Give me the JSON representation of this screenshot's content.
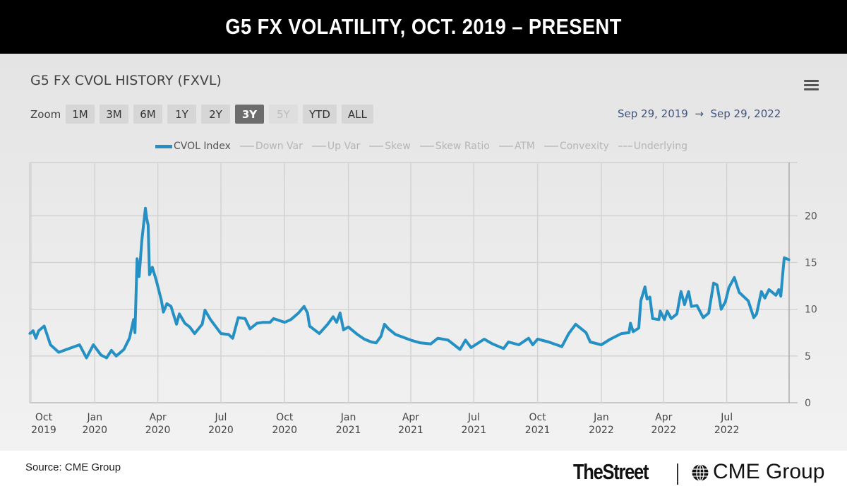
{
  "header": {
    "title": "G5 FX VOLATILITY, OCT. 2019 – PRESENT"
  },
  "chart_header": {
    "title": "G5 FX CVOL HISTORY (FXVL)",
    "menu_icon": "hamburger-menu-icon",
    "zoom_label": "Zoom",
    "zoom_buttons": [
      {
        "label": "1M",
        "state": "normal"
      },
      {
        "label": "3M",
        "state": "normal"
      },
      {
        "label": "6M",
        "state": "normal"
      },
      {
        "label": "1Y",
        "state": "normal"
      },
      {
        "label": "2Y",
        "state": "normal"
      },
      {
        "label": "3Y",
        "state": "selected"
      },
      {
        "label": "5Y",
        "state": "disabled"
      },
      {
        "label": "YTD",
        "state": "normal"
      },
      {
        "label": "ALL",
        "state": "normal"
      }
    ],
    "range_from": "Sep 29, 2019",
    "range_arrow": "→",
    "range_to": "Sep 29, 2022"
  },
  "chart_data": {
    "type": "line",
    "title": "G5 FX CVOL HISTORY (FXVL)",
    "xlabel": "",
    "ylabel": "",
    "xlim": [
      "2019-09-29",
      "2022-09-29"
    ],
    "ylim": [
      0,
      25.7
    ],
    "grid": true,
    "legend_position": "top-center",
    "legend": [
      {
        "name": "CVOL Index",
        "active": true,
        "style": "solid"
      },
      {
        "name": "Down Var",
        "active": false,
        "style": "solid"
      },
      {
        "name": "Up Var",
        "active": false,
        "style": "solid"
      },
      {
        "name": "Skew",
        "active": false,
        "style": "solid"
      },
      {
        "name": "Skew Ratio",
        "active": false,
        "style": "solid"
      },
      {
        "name": "ATM",
        "active": false,
        "style": "solid"
      },
      {
        "name": "Convexity",
        "active": false,
        "style": "solid"
      },
      {
        "name": "Underlying",
        "active": false,
        "style": "dashed"
      }
    ],
    "series_color": "#2590c4",
    "y_ticks": [
      "0",
      "5",
      "10",
      "15",
      "20"
    ],
    "y_tick_values": [
      0,
      5,
      10,
      15,
      20
    ],
    "x_ticks": [
      {
        "date": "2019-10-01",
        "l1": "Oct",
        "l2": "2019"
      },
      {
        "date": "2020-01-01",
        "l1": "Jan",
        "l2": "2020"
      },
      {
        "date": "2020-04-01",
        "l1": "Apr",
        "l2": "2020"
      },
      {
        "date": "2020-07-01",
        "l1": "Jul",
        "l2": "2020"
      },
      {
        "date": "2020-10-01",
        "l1": "Oct",
        "l2": "2020"
      },
      {
        "date": "2021-01-01",
        "l1": "Jan",
        "l2": "2021"
      },
      {
        "date": "2021-04-01",
        "l1": "Apr",
        "l2": "2021"
      },
      {
        "date": "2021-07-01",
        "l1": "Jul",
        "l2": "2021"
      },
      {
        "date": "2021-10-01",
        "l1": "Oct",
        "l2": "2021"
      },
      {
        "date": "2022-01-01",
        "l1": "Jan",
        "l2": "2022"
      },
      {
        "date": "2022-04-01",
        "l1": "Apr",
        "l2": "2022"
      },
      {
        "date": "2022-07-01",
        "l1": "Jul",
        "l2": "2022"
      }
    ],
    "series": [
      {
        "name": "CVOL Index",
        "points": [
          [
            "2019-09-29",
            7.4
          ],
          [
            "2019-10-01",
            7.5
          ],
          [
            "2019-10-04",
            7.7
          ],
          [
            "2019-10-08",
            6.9
          ],
          [
            "2019-10-12",
            7.7
          ],
          [
            "2019-10-20",
            8.2
          ],
          [
            "2019-10-29",
            6.2
          ],
          [
            "2019-11-10",
            5.4
          ],
          [
            "2019-11-25",
            5.8
          ],
          [
            "2019-12-10",
            6.2
          ],
          [
            "2019-12-20",
            4.8
          ],
          [
            "2019-12-30",
            6.2
          ],
          [
            "2020-01-10",
            5.1
          ],
          [
            "2020-01-18",
            4.8
          ],
          [
            "2020-01-25",
            5.6
          ],
          [
            "2020-02-01",
            5.0
          ],
          [
            "2020-02-12",
            5.7
          ],
          [
            "2020-02-20",
            6.9
          ],
          [
            "2020-02-26",
            8.9
          ],
          [
            "2020-02-28",
            7.5
          ],
          [
            "2020-03-02",
            15.4
          ],
          [
            "2020-03-05",
            13.5
          ],
          [
            "2020-03-09",
            17.4
          ],
          [
            "2020-03-14",
            20.8
          ],
          [
            "2020-03-16",
            19.7
          ],
          [
            "2020-03-18",
            19.0
          ],
          [
            "2020-03-20",
            13.7
          ],
          [
            "2020-03-24",
            14.5
          ],
          [
            "2020-03-30",
            13.0
          ],
          [
            "2020-04-06",
            11.0
          ],
          [
            "2020-04-09",
            9.7
          ],
          [
            "2020-04-14",
            10.6
          ],
          [
            "2020-04-20",
            10.3
          ],
          [
            "2020-04-28",
            8.4
          ],
          [
            "2020-05-02",
            9.5
          ],
          [
            "2020-05-10",
            8.5
          ],
          [
            "2020-05-17",
            8.1
          ],
          [
            "2020-05-24",
            7.4
          ],
          [
            "2020-06-04",
            8.4
          ],
          [
            "2020-06-08",
            9.9
          ],
          [
            "2020-06-16",
            8.9
          ],
          [
            "2020-07-01",
            7.4
          ],
          [
            "2020-07-12",
            7.3
          ],
          [
            "2020-07-18",
            6.9
          ],
          [
            "2020-07-26",
            9.1
          ],
          [
            "2020-08-05",
            9.0
          ],
          [
            "2020-08-12",
            7.9
          ],
          [
            "2020-08-22",
            8.5
          ],
          [
            "2020-08-31",
            8.6
          ],
          [
            "2020-09-10",
            8.6
          ],
          [
            "2020-09-15",
            9.0
          ],
          [
            "2020-10-01",
            8.6
          ],
          [
            "2020-10-10",
            8.9
          ],
          [
            "2020-10-21",
            9.6
          ],
          [
            "2020-10-29",
            10.3
          ],
          [
            "2020-11-03",
            9.6
          ],
          [
            "2020-11-06",
            8.2
          ],
          [
            "2020-11-20",
            7.4
          ],
          [
            "2020-12-02",
            8.4
          ],
          [
            "2020-12-10",
            9.2
          ],
          [
            "2020-12-15",
            8.6
          ],
          [
            "2020-12-20",
            9.6
          ],
          [
            "2020-12-25",
            7.8
          ],
          [
            "2021-01-01",
            8.1
          ],
          [
            "2021-01-14",
            7.3
          ],
          [
            "2021-01-24",
            6.8
          ],
          [
            "2021-02-03",
            6.5
          ],
          [
            "2021-02-10",
            6.4
          ],
          [
            "2021-02-17",
            7.1
          ],
          [
            "2021-02-22",
            8.4
          ],
          [
            "2021-02-28",
            7.9
          ],
          [
            "2021-03-10",
            7.3
          ],
          [
            "2021-04-01",
            6.7
          ],
          [
            "2021-04-15",
            6.4
          ],
          [
            "2021-04-30",
            6.3
          ],
          [
            "2021-05-10",
            6.9
          ],
          [
            "2021-05-25",
            6.7
          ],
          [
            "2021-06-11",
            5.7
          ],
          [
            "2021-06-19",
            6.7
          ],
          [
            "2021-06-27",
            5.9
          ],
          [
            "2021-07-16",
            6.8
          ],
          [
            "2021-07-28",
            6.3
          ],
          [
            "2021-08-13",
            5.8
          ],
          [
            "2021-08-20",
            6.5
          ],
          [
            "2021-09-04",
            6.2
          ],
          [
            "2021-09-18",
            6.9
          ],
          [
            "2021-09-24",
            6.2
          ],
          [
            "2021-10-01",
            6.8
          ],
          [
            "2021-10-17",
            6.5
          ],
          [
            "2021-11-05",
            6.0
          ],
          [
            "2021-11-15",
            7.4
          ],
          [
            "2021-11-25",
            8.4
          ],
          [
            "2021-12-10",
            7.5
          ],
          [
            "2021-12-16",
            6.5
          ],
          [
            "2022-01-01",
            6.2
          ],
          [
            "2022-01-14",
            6.8
          ],
          [
            "2022-01-30",
            7.4
          ],
          [
            "2022-02-10",
            7.5
          ],
          [
            "2022-02-12",
            8.5
          ],
          [
            "2022-02-16",
            7.6
          ],
          [
            "2022-02-24",
            8.0
          ],
          [
            "2022-02-27",
            10.9
          ],
          [
            "2022-03-05",
            12.4
          ],
          [
            "2022-03-08",
            11.1
          ],
          [
            "2022-03-12",
            11.3
          ],
          [
            "2022-03-16",
            9.0
          ],
          [
            "2022-03-25",
            8.9
          ],
          [
            "2022-03-27",
            9.8
          ],
          [
            "2022-04-02",
            8.9
          ],
          [
            "2022-04-06",
            9.8
          ],
          [
            "2022-04-12",
            9.0
          ],
          [
            "2022-04-20",
            9.5
          ],
          [
            "2022-04-26",
            11.9
          ],
          [
            "2022-05-01",
            10.5
          ],
          [
            "2022-05-07",
            11.9
          ],
          [
            "2022-05-11",
            10.3
          ],
          [
            "2022-05-19",
            10.4
          ],
          [
            "2022-05-28",
            9.1
          ],
          [
            "2022-06-05",
            9.6
          ],
          [
            "2022-06-12",
            12.8
          ],
          [
            "2022-06-17",
            12.6
          ],
          [
            "2022-06-23",
            10.0
          ],
          [
            "2022-06-29",
            10.8
          ],
          [
            "2022-07-04",
            12.3
          ],
          [
            "2022-07-12",
            13.4
          ],
          [
            "2022-07-19",
            11.8
          ],
          [
            "2022-08-01",
            10.9
          ],
          [
            "2022-08-09",
            9.1
          ],
          [
            "2022-08-13",
            9.5
          ],
          [
            "2022-08-20",
            11.9
          ],
          [
            "2022-08-25",
            11.2
          ],
          [
            "2022-08-31",
            12.1
          ],
          [
            "2022-09-10",
            11.5
          ],
          [
            "2022-09-14",
            12.1
          ],
          [
            "2022-09-17",
            11.4
          ],
          [
            "2022-09-20",
            14.0
          ],
          [
            "2022-09-22",
            15.5
          ],
          [
            "2022-09-29",
            15.3
          ]
        ]
      }
    ]
  },
  "footer": {
    "source": "Source: CME Group",
    "logo_thestreet": "TheStreet",
    "logo_cme": "CME Group"
  }
}
